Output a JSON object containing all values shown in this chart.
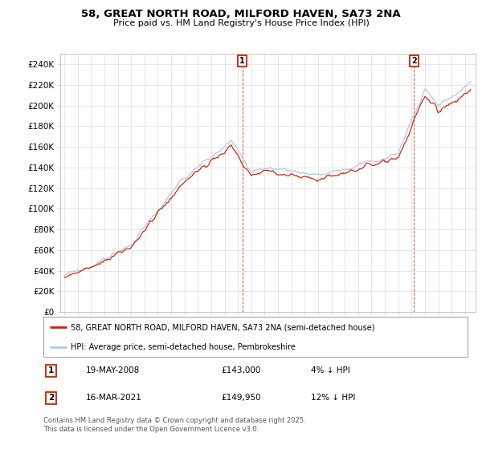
{
  "title_line1": "58, GREAT NORTH ROAD, MILFORD HAVEN, SA73 2NA",
  "title_line2": "Price paid vs. HM Land Registry's House Price Index (HPI)",
  "yticks": [
    0,
    20000,
    40000,
    60000,
    80000,
    100000,
    120000,
    140000,
    160000,
    180000,
    200000,
    220000,
    240000
  ],
  "ytick_labels": [
    "£0",
    "£20K",
    "£40K",
    "£60K",
    "£80K",
    "£100K",
    "£120K",
    "£140K",
    "£160K",
    "£180K",
    "£200K",
    "£220K",
    "£240K"
  ],
  "ylim": [
    0,
    250000
  ],
  "xlim_left": 1994.7,
  "xlim_right": 2025.8,
  "hpi_color": "#aaccee",
  "price_color": "#cc2200",
  "vline_color": "#cc2200",
  "grid_color": "#dddddd",
  "sale1_year": 2008,
  "sale1_month": 5,
  "sale2_year": 2021,
  "sale2_month": 3,
  "sale1_label": "19-MAY-2008",
  "sale1_price": "£143,000",
  "sale1_hpi": "4% ↓ HPI",
  "sale2_label": "16-MAR-2021",
  "sale2_price": "£149,950",
  "sale2_hpi": "12% ↓ HPI",
  "legend_price": "58, GREAT NORTH ROAD, MILFORD HAVEN, SA73 2NA (semi-detached house)",
  "legend_hpi": "HPI: Average price, semi-detached house, Pembrokeshire",
  "footer": "Contains HM Land Registry data © Crown copyright and database right 2025.\nThis data is licensed under the Open Government Licence v3.0.",
  "background_color": "#ffffff",
  "start_year": 1995,
  "n_months": 366
}
